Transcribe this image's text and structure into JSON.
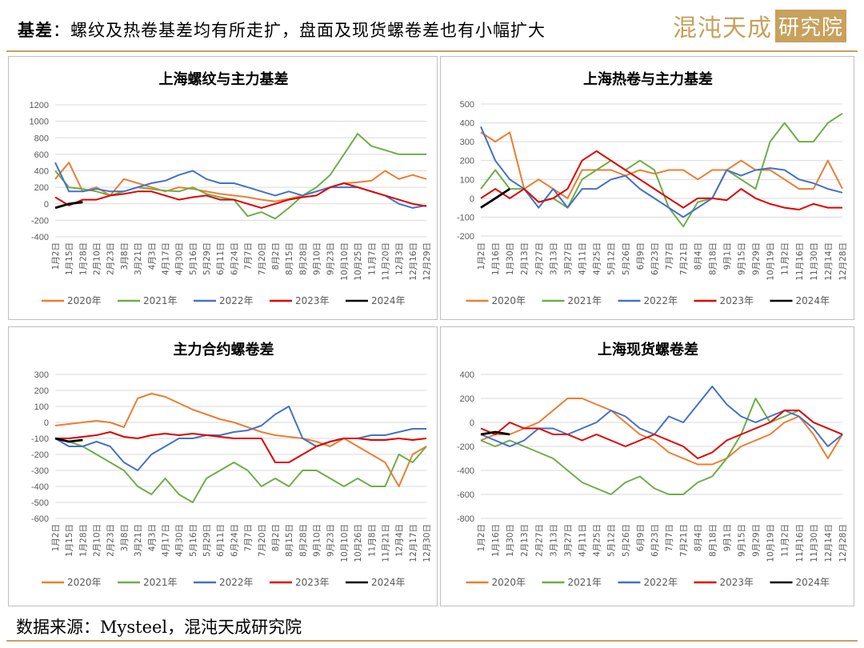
{
  "header": {
    "keyword": "基差",
    "title": "：螺纹及热卷基差均有所走扩，盘面及现货螺卷差也有小幅扩大",
    "brand_main": "混沌天成",
    "brand_box": "研究院"
  },
  "footer": {
    "source": "数据来源：Mysteel，混沌天成研究院"
  },
  "colors": {
    "2020年": "#ED7D31",
    "2021年": "#70AD47",
    "2022年": "#4472C4",
    "2023年": "#E00000",
    "2024年": "#000000",
    "accent": "#c8a15c"
  },
  "chart_data": [
    {
      "type": "line",
      "title": "上海螺纹与主力基差",
      "ylim": [
        -400,
        1200
      ],
      "yticks": [
        -400,
        -200,
        0,
        200,
        400,
        600,
        800,
        1000,
        1200
      ],
      "x_categories": [
        "1月2日",
        "1月15日",
        "1月28日",
        "2月10日",
        "2月23日",
        "3月8日",
        "3月21日",
        "4月3日",
        "4月17日",
        "4月30日",
        "5月16日",
        "5月29日",
        "6月11日",
        "6月24日",
        "7月7日",
        "7月20日",
        "8月2日",
        "8月15日",
        "8月28日",
        "9月10日",
        "9月23日",
        "10月10日",
        "10月25日",
        "11月7日",
        "11月20日",
        "12月3日",
        "12月16日",
        "12月29日"
      ],
      "series": [
        {
          "name": "2020年",
          "values": [
            300,
            500,
            150,
            200,
            100,
            300,
            250,
            200,
            150,
            200,
            180,
            150,
            120,
            100,
            80,
            50,
            30,
            60,
            100,
            150,
            200,
            250,
            260,
            280,
            400,
            300,
            350,
            300
          ]
        },
        {
          "name": "2021年",
          "values": [
            400,
            200,
            180,
            150,
            100,
            150,
            200,
            180,
            160,
            150,
            200,
            120,
            80,
            50,
            -150,
            -100,
            -180,
            -50,
            100,
            200,
            350,
            600,
            850,
            700,
            650,
            600,
            600,
            600
          ]
        },
        {
          "name": "2022年",
          "values": [
            500,
            150,
            150,
            180,
            150,
            150,
            200,
            250,
            280,
            350,
            400,
            300,
            250,
            250,
            200,
            150,
            100,
            150,
            100,
            150,
            200,
            200,
            200,
            150,
            100,
            0,
            -50,
            -20
          ]
        },
        {
          "name": "2023年",
          "values": [
            80,
            -20,
            50,
            50,
            100,
            120,
            150,
            150,
            100,
            50,
            80,
            100,
            50,
            50,
            0,
            -50,
            0,
            50,
            80,
            100,
            200,
            250,
            200,
            150,
            100,
            50,
            0,
            -30
          ]
        },
        {
          "name": "2024年",
          "values": [
            -50,
            0,
            20
          ]
        }
      ]
    },
    {
      "type": "line",
      "title": "上海热卷与主力基差",
      "ylim": [
        -200,
        500
      ],
      "yticks": [
        -200,
        -100,
        0,
        100,
        200,
        300,
        400,
        500
      ],
      "x_categories": [
        "1月2日",
        "1月16日",
        "1月30日",
        "2月13日",
        "2月27日",
        "3月13日",
        "3月27日",
        "4月11日",
        "4月25日",
        "5月12日",
        "5月26日",
        "6月9日",
        "6月23日",
        "7月7日",
        "7月21日",
        "8月4日",
        "8月18日",
        "9月1日",
        "9月15日",
        "9月29日",
        "10月19日",
        "11月2日",
        "11月16日",
        "11月30日",
        "12月14日",
        "12月28日"
      ],
      "series": [
        {
          "name": "2020年",
          "values": [
            350,
            300,
            350,
            50,
            100,
            50,
            0,
            150,
            150,
            150,
            120,
            150,
            130,
            150,
            150,
            100,
            150,
            150,
            200,
            150,
            150,
            100,
            50,
            50,
            200,
            50
          ]
        },
        {
          "name": "2021年",
          "values": [
            50,
            150,
            50,
            50,
            -20,
            0,
            -50,
            100,
            150,
            200,
            150,
            200,
            150,
            -50,
            -150,
            -20,
            0,
            150,
            100,
            50,
            300,
            400,
            300,
            300,
            400,
            450
          ]
        },
        {
          "name": "2022年",
          "values": [
            380,
            200,
            100,
            50,
            -50,
            50,
            -50,
            50,
            50,
            100,
            120,
            50,
            0,
            -50,
            -100,
            -50,
            0,
            150,
            120,
            150,
            160,
            150,
            100,
            80,
            50,
            30
          ]
        },
        {
          "name": "2023年",
          "values": [
            0,
            50,
            0,
            50,
            -20,
            0,
            50,
            200,
            250,
            200,
            150,
            100,
            50,
            0,
            -50,
            0,
            0,
            -10,
            50,
            0,
            -30,
            -50,
            -60,
            -30,
            -50,
            -50
          ]
        },
        {
          "name": "2024年",
          "values": [
            -50,
            0,
            50
          ]
        }
      ]
    },
    {
      "type": "line",
      "title": "主力合约螺卷差",
      "ylim": [
        -600,
        300
      ],
      "yticks": [
        -600,
        -500,
        -400,
        -300,
        -200,
        -100,
        0,
        100,
        200,
        300
      ],
      "x_categories": [
        "1月2日",
        "1月15日",
        "1月28日",
        "2月10日",
        "2月23日",
        "3月8日",
        "3月21日",
        "4月3日",
        "4月17日",
        "4月30日",
        "5月16日",
        "5月29日",
        "6月11日",
        "6月24日",
        "7月7日",
        "7月20日",
        "8月2日",
        "8月15日",
        "8月28日",
        "9月10日",
        "9月23日",
        "10月10日",
        "10月26日",
        "11月8日",
        "11月21日",
        "12月4日",
        "12月17日",
        "12月30日"
      ],
      "series": [
        {
          "name": "2020年",
          "values": [
            -20,
            -10,
            0,
            10,
            0,
            -30,
            150,
            180,
            160,
            120,
            80,
            50,
            20,
            0,
            -30,
            -60,
            -80,
            -90,
            -100,
            -120,
            -150,
            -100,
            -150,
            -200,
            -250,
            -400,
            -200,
            -150
          ]
        },
        {
          "name": "2021年",
          "values": [
            -100,
            -120,
            -150,
            -200,
            -250,
            -300,
            -400,
            -450,
            -350,
            -450,
            -500,
            -350,
            -300,
            -250,
            -300,
            -400,
            -350,
            -400,
            -300,
            -300,
            -350,
            -400,
            -350,
            -400,
            -400,
            -200,
            -250,
            -150
          ]
        },
        {
          "name": "2022年",
          "values": [
            -100,
            -150,
            -150,
            -120,
            -150,
            -250,
            -300,
            -200,
            -150,
            -100,
            -100,
            -80,
            -80,
            -60,
            -50,
            -20,
            50,
            100,
            -100,
            -150,
            -120,
            -100,
            -100,
            -80,
            -80,
            -60,
            -40,
            -40
          ]
        },
        {
          "name": "2023年",
          "values": [
            -100,
            -100,
            -90,
            -80,
            -60,
            -90,
            -100,
            -80,
            -70,
            -80,
            -70,
            -80,
            -90,
            -100,
            -100,
            -100,
            -250,
            -250,
            -200,
            -150,
            -120,
            -100,
            -100,
            -110,
            -110,
            -100,
            -110,
            -100
          ]
        },
        {
          "name": "2024年",
          "values": [
            -100,
            -120,
            -110
          ]
        }
      ]
    },
    {
      "type": "line",
      "title": "上海现货螺卷差",
      "ylim": [
        -800,
        400
      ],
      "yticks": [
        -800,
        -600,
        -400,
        -200,
        0,
        200,
        400
      ],
      "x_categories": [
        "1月2日",
        "1月16日",
        "1月30日",
        "2月13日",
        "2月27日",
        "3月13日",
        "3月27日",
        "4月11日",
        "4月25日",
        "5月12日",
        "5月26日",
        "6月9日",
        "6月23日",
        "7月7日",
        "7月21日",
        "8月4日",
        "8月18日",
        "9月1日",
        "9月15日",
        "9月29日",
        "10月19日",
        "11月2日",
        "11月16日",
        "11月30日",
        "12月14日",
        "12月28日"
      ],
      "series": [
        {
          "name": "2020年",
          "values": [
            -150,
            -100,
            -100,
            -50,
            0,
            100,
            200,
            200,
            150,
            100,
            0,
            -100,
            -150,
            -250,
            -300,
            -350,
            -350,
            -300,
            -200,
            -150,
            -100,
            0,
            50,
            -100,
            -300,
            -100
          ]
        },
        {
          "name": "2021年",
          "values": [
            -150,
            -200,
            -150,
            -200,
            -250,
            -300,
            -400,
            -500,
            -550,
            -600,
            -500,
            -450,
            -550,
            -600,
            -600,
            -500,
            -450,
            -300,
            -100,
            200,
            0,
            50,
            100,
            0,
            -50,
            -100
          ]
        },
        {
          "name": "2022年",
          "values": [
            -100,
            -150,
            -200,
            -150,
            -50,
            -50,
            -100,
            -50,
            0,
            100,
            50,
            -50,
            -100,
            50,
            0,
            150,
            300,
            150,
            50,
            0,
            50,
            100,
            50,
            -50,
            -200,
            -100
          ]
        },
        {
          "name": "2023年",
          "values": [
            -50,
            -100,
            0,
            -50,
            -50,
            -100,
            -100,
            -150,
            -100,
            -150,
            -200,
            -150,
            -100,
            -150,
            -200,
            -300,
            -250,
            -150,
            -100,
            -50,
            0,
            100,
            100,
            0,
            -50,
            -100
          ]
        },
        {
          "name": "2024年",
          "values": [
            -100,
            -80,
            -100
          ]
        }
      ]
    }
  ]
}
